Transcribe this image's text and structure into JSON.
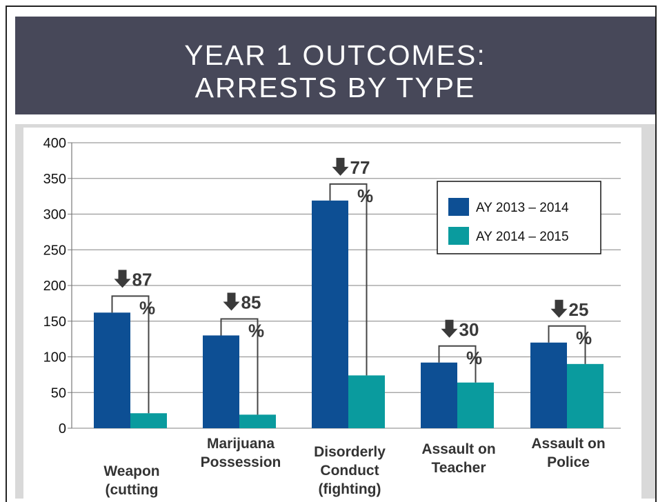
{
  "slide": {
    "title_line1": "YEAR 1 OUTCOMES:",
    "title_line2": "ARRESTS BY TYPE"
  },
  "chart_data": {
    "type": "bar",
    "categories": [
      "Weapon (cutting",
      "Marijuana Possession",
      "Disorderly Conduct (fighting)",
      "Assault on Teacher",
      "Assault on Police"
    ],
    "category_lines": [
      [
        "Weapon",
        "(cutting"
      ],
      [
        "Marijuana",
        "Possession"
      ],
      [
        "Disorderly",
        "Conduct",
        "(fighting)"
      ],
      [
        "Assault on",
        "Teacher"
      ],
      [
        "Assault on",
        "Police"
      ]
    ],
    "series": [
      {
        "name": "AY 2013 – 2014",
        "color": "#0d4f94",
        "values": [
          162,
          130,
          319,
          92,
          120
        ]
      },
      {
        "name": "AY 2014 – 2015",
        "color": "#0a9b9e",
        "values": [
          21,
          19,
          74,
          64,
          90
        ]
      }
    ],
    "yticks": [
      "400",
      "350",
      "300",
      "250",
      "200",
      "150",
      "100",
      "50",
      "0"
    ],
    "ylim": [
      0,
      400
    ],
    "grid": true,
    "legend_placement": "top-right",
    "annotations": [
      {
        "arrow": "🢃",
        "value": "87",
        "unit": "%"
      },
      {
        "arrow": "🢃",
        "value": "85",
        "unit": "%"
      },
      {
        "arrow": "🢃",
        "value": "77",
        "unit": "%"
      },
      {
        "arrow": "🢃",
        "value": "30",
        "unit": "%"
      },
      {
        "arrow": "🢃",
        "value": "25",
        "unit": "%"
      }
    ]
  }
}
